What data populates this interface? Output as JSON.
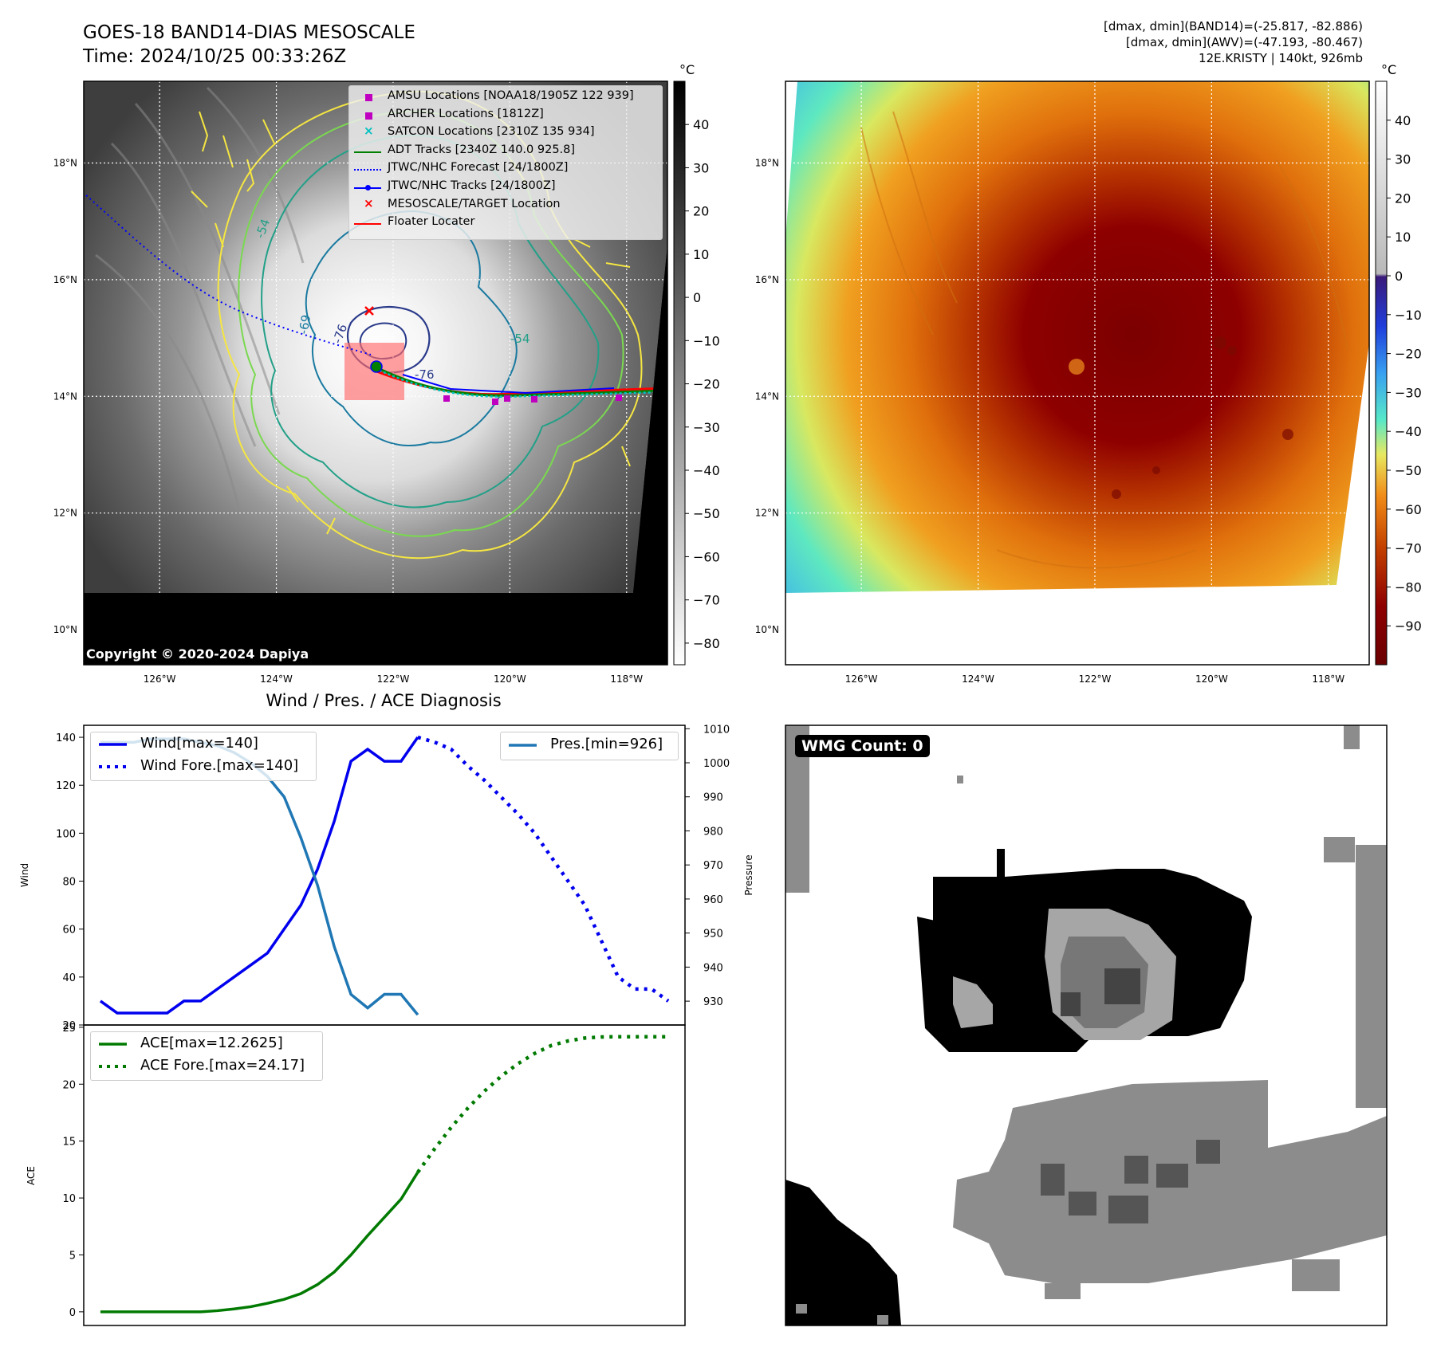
{
  "header": {
    "title_line1": "GOES-18 BAND14-DIAS MESOSCALE",
    "title_line2": "Time: 2024/10/25 00:33:26Z",
    "info_line1": "[dmax, dmin](BAND14)=(-25.817, -82.886)",
    "info_line2": "[dmax, dmin](AWV)=(-47.193, -80.467)",
    "info_line3": "12E.KRISTY | 140kt, 926mb"
  },
  "map_axes": {
    "lat_labels": [
      "18°N",
      "16°N",
      "14°N",
      "12°N",
      "10°N"
    ],
    "lat_values": [
      18,
      16,
      14,
      12,
      10
    ],
    "lon_labels": [
      "126°W",
      "124°W",
      "122°W",
      "120°W",
      "118°W"
    ],
    "lon_values": [
      -126,
      -124,
      -122,
      -120,
      -118
    ],
    "lon_range": [
      -127.3,
      -117.3
    ],
    "lat_range": [
      9.4,
      19.4
    ]
  },
  "ir_panel": {
    "unit": "°C",
    "colorbar_ticks": [
      "40",
      "30",
      "20",
      "10",
      "0",
      "−10",
      "−20",
      "−30",
      "−40",
      "−50",
      "−60",
      "−70",
      "−80"
    ],
    "colorbar_range": [
      -85,
      50
    ],
    "copyright": "Copyright © 2020-2024 Dapiya",
    "contour_labels": [
      "-54",
      "-76",
      "-76",
      "-69",
      "-54"
    ],
    "legend": [
      {
        "label": "AMSU Locations [NOAA18/1905Z 122 939]",
        "color": "#c000c0",
        "marker": "square"
      },
      {
        "label": "ARCHER Locations [1812Z]",
        "color": "#c000c0",
        "marker": "square"
      },
      {
        "label": "SATCON Locations [2310Z 135 934]",
        "color": "#00c0c0",
        "marker": "x"
      },
      {
        "label": "ADT Tracks [2340Z 140.0 925.8]",
        "color": "#008000",
        "marker": "line"
      },
      {
        "label": "JTWC/NHC Forecast [24/1800Z]",
        "color": "#0000ff",
        "marker": "dotted"
      },
      {
        "label": "JTWC/NHC Tracks [24/1800Z]",
        "color": "#0000ff",
        "marker": "line-dot"
      },
      {
        "label": "MESOSCALE/TARGET Location",
        "color": "#ff0000",
        "marker": "x"
      },
      {
        "label": "Floater Locater",
        "color": "#ff0000",
        "marker": "line"
      }
    ]
  },
  "awv_panel": {
    "unit": "°C",
    "colorbar_ticks": [
      "40",
      "30",
      "20",
      "10",
      "0",
      "−10",
      "−20",
      "−30",
      "−40",
      "−50",
      "−60",
      "−70",
      "−80",
      "−90"
    ],
    "colorbar_range": [
      -100,
      50
    ]
  },
  "colors": {
    "wind": "#0000ee",
    "pressure": "#1f77b4",
    "ace": "#007a00",
    "warm_core": "#8b0000",
    "floater": "#ff0000"
  },
  "chart_data": [
    {
      "type": "line",
      "title": "Wind / Pres. / ACE Diagnosis",
      "ylabel": "Wind",
      "ylabel_right": "Pressure",
      "ylim": [
        20,
        145
      ],
      "ylim_right": [
        923,
        1011
      ],
      "xlim": [
        0,
        36
      ],
      "yticks": [
        20,
        40,
        60,
        80,
        100,
        120,
        140
      ],
      "yticks_right": [
        930,
        940,
        950,
        960,
        970,
        980,
        990,
        1000,
        1010
      ],
      "series": [
        {
          "name": "Wind[max=140]",
          "style": "solid",
          "x": [
            1,
            2,
            3,
            4,
            5,
            6,
            7,
            8,
            9,
            10,
            11,
            12,
            13,
            14,
            15,
            16,
            17,
            18,
            19,
            20
          ],
          "values": [
            30,
            25,
            25,
            25,
            25,
            30,
            30,
            35,
            40,
            45,
            50,
            60,
            70,
            85,
            105,
            130,
            135,
            130,
            130,
            140
          ]
        },
        {
          "name": "Wind Fore.[max=140]",
          "style": "dotted",
          "x": [
            20,
            21,
            22,
            23,
            24,
            25,
            26,
            27,
            28,
            29,
            30,
            31,
            32,
            33,
            34,
            35
          ],
          "values": [
            140,
            138,
            135,
            128,
            122,
            115,
            108,
            100,
            90,
            80,
            70,
            55,
            40,
            35,
            35,
            30
          ]
        },
        {
          "name": "Pres.[min=926]",
          "style": "solid",
          "x": [
            1,
            2,
            3,
            4,
            5,
            6,
            7,
            8,
            9,
            10,
            11,
            12,
            13,
            14,
            15,
            16,
            17,
            18,
            19,
            20
          ],
          "values": [
            1006,
            1006,
            1006,
            1007,
            1007,
            1007,
            1006,
            1005,
            1003,
            1000,
            996,
            990,
            978,
            964,
            946,
            932,
            928,
            932,
            932,
            926
          ]
        }
      ]
    },
    {
      "type": "line",
      "ylabel": "ACE",
      "ylim": [
        -1.2,
        25.2
      ],
      "xlim": [
        0,
        36
      ],
      "yticks": [
        0,
        5,
        10,
        15,
        20,
        25
      ],
      "series": [
        {
          "name": "ACE[max=12.2625]",
          "style": "solid",
          "x": [
            1,
            2,
            3,
            4,
            5,
            6,
            7,
            8,
            9,
            10,
            11,
            12,
            13,
            14,
            15,
            16,
            17,
            18,
            19,
            20
          ],
          "values": [
            0,
            0,
            0,
            0,
            0,
            0,
            0,
            0.1,
            0.25,
            0.45,
            0.75,
            1.1,
            1.6,
            2.4,
            3.5,
            5.0,
            6.7,
            8.3,
            9.9,
            12.26
          ]
        },
        {
          "name": "ACE Fore.[max=24.17]",
          "style": "dotted",
          "x": [
            20,
            21,
            22,
            23,
            24,
            25,
            26,
            27,
            28,
            29,
            30,
            31,
            32,
            33,
            34,
            35
          ],
          "values": [
            12.26,
            14.3,
            16.2,
            17.9,
            19.4,
            20.7,
            21.8,
            22.7,
            23.4,
            23.8,
            24.05,
            24.15,
            24.17,
            24.17,
            24.17,
            24.17
          ]
        }
      ]
    }
  ],
  "wmg_panel": {
    "badge": "WMG Count: 0"
  }
}
